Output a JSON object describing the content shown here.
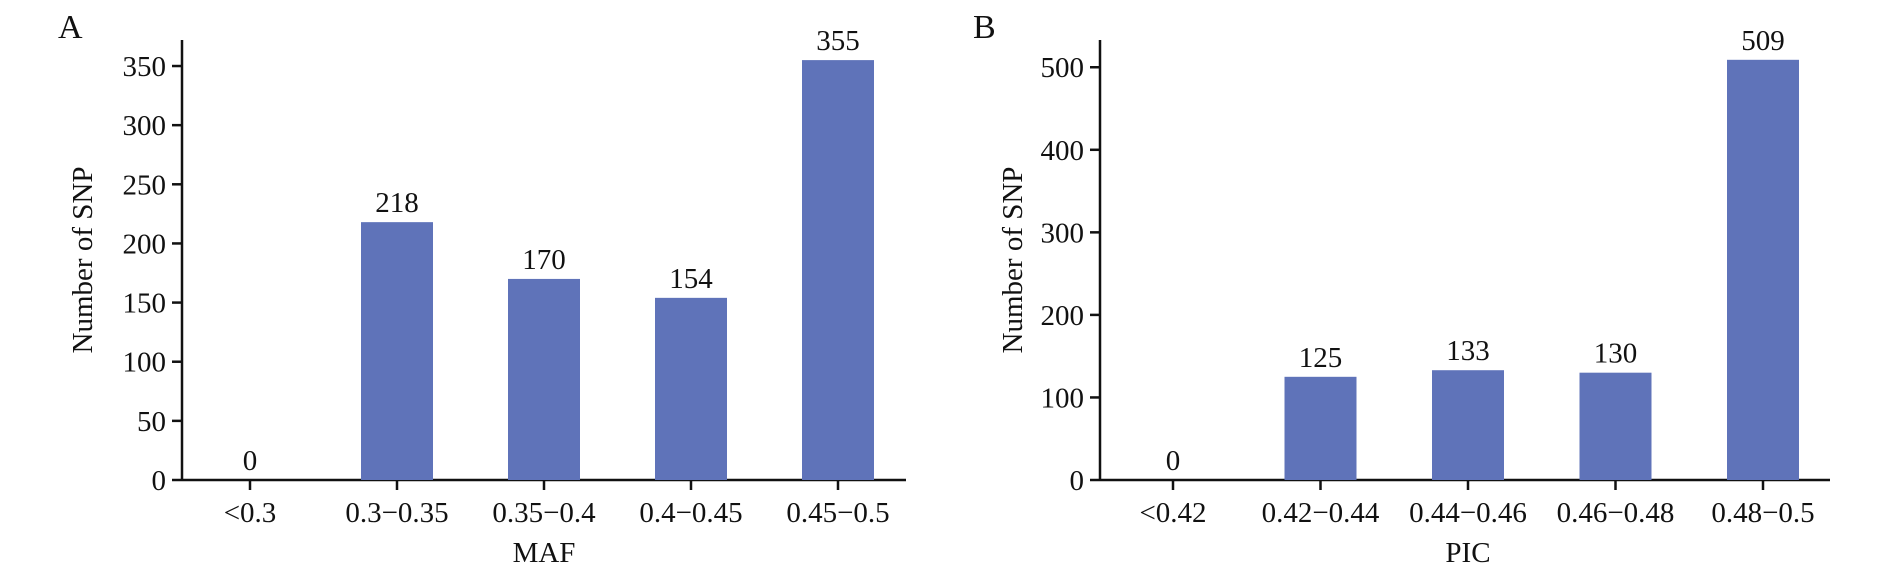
{
  "chart_data": [
    {
      "panel": "A",
      "type": "bar",
      "categories": [
        "<0.3",
        "0.3−0.35",
        "0.35−0.4",
        "0.4−0.45",
        "0.45−0.5"
      ],
      "values": [
        0,
        218,
        170,
        154,
        355
      ],
      "data_labels": [
        "0",
        "218",
        "170",
        "154",
        "355"
      ],
      "title": "",
      "xlabel": "MAF",
      "ylabel": "Number of SNP",
      "ylim": [
        0,
        372
      ],
      "yticks": [
        0,
        50,
        100,
        150,
        200,
        250,
        300,
        350
      ],
      "grid": false,
      "legend": "none",
      "bar_color": "#5f73b9"
    },
    {
      "panel": "B",
      "type": "bar",
      "categories": [
        "<0.42",
        "0.42−0.44",
        "0.44−0.46",
        "0.46−0.48",
        "0.48−0.5"
      ],
      "values": [
        0,
        125,
        133,
        130,
        509
      ],
      "data_labels": [
        "0",
        "125",
        "133",
        "130",
        "509"
      ],
      "title": "",
      "xlabel": "PIC",
      "ylabel": "Number of SNP",
      "ylim": [
        0,
        533
      ],
      "yticks": [
        0,
        100,
        200,
        300,
        400,
        500
      ],
      "grid": false,
      "legend": "none",
      "bar_color": "#5f73b9"
    }
  ]
}
